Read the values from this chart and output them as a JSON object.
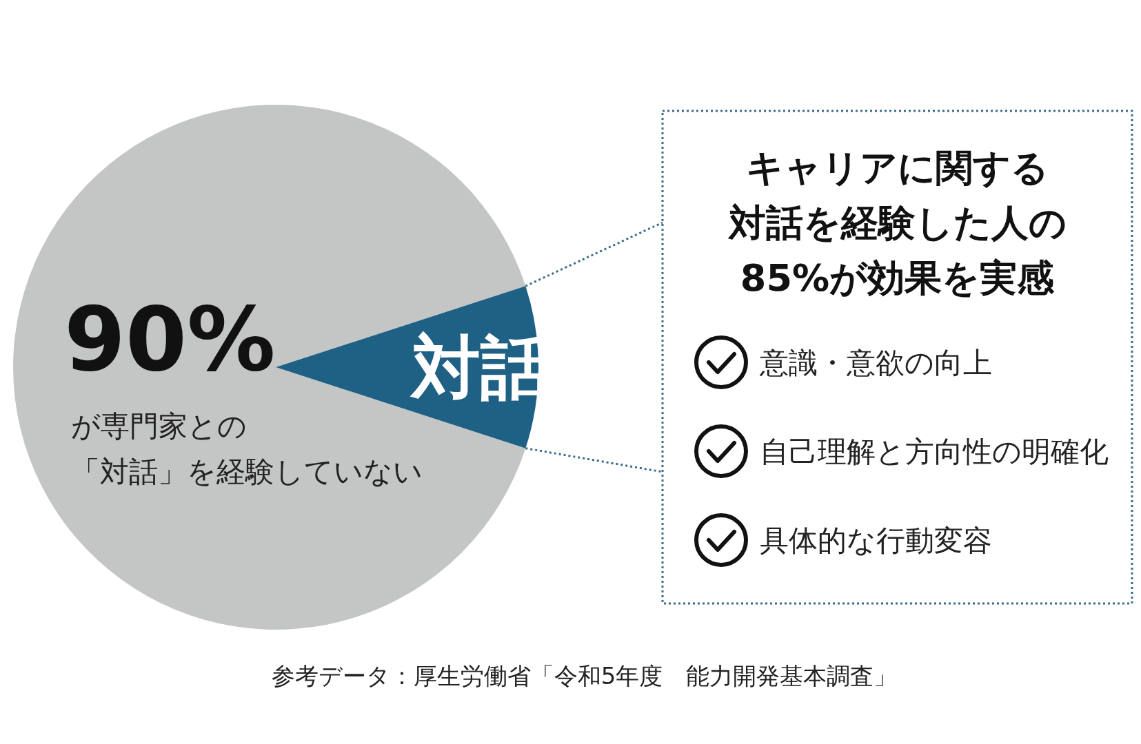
{
  "chart_data": {
    "type": "pie",
    "categories": [
      null,
      "対話"
    ],
    "values": [
      90,
      10
    ],
    "colors": [
      "#c4c6c5",
      "#1f6185"
    ],
    "value_labels": [
      "90%",
      null
    ],
    "annotations": [
      "が専門家との",
      "「対話」を経験していない",
      "キャリアに関する",
      "対話を経験した人の",
      "85%が効果を実感",
      "意識・意欲の向上",
      "自己理解と方向性の明確化",
      "具体的な行動変容",
      "参考データ：厚生労働省「令和5年度　能力開発基本調査」"
    ]
  }
}
